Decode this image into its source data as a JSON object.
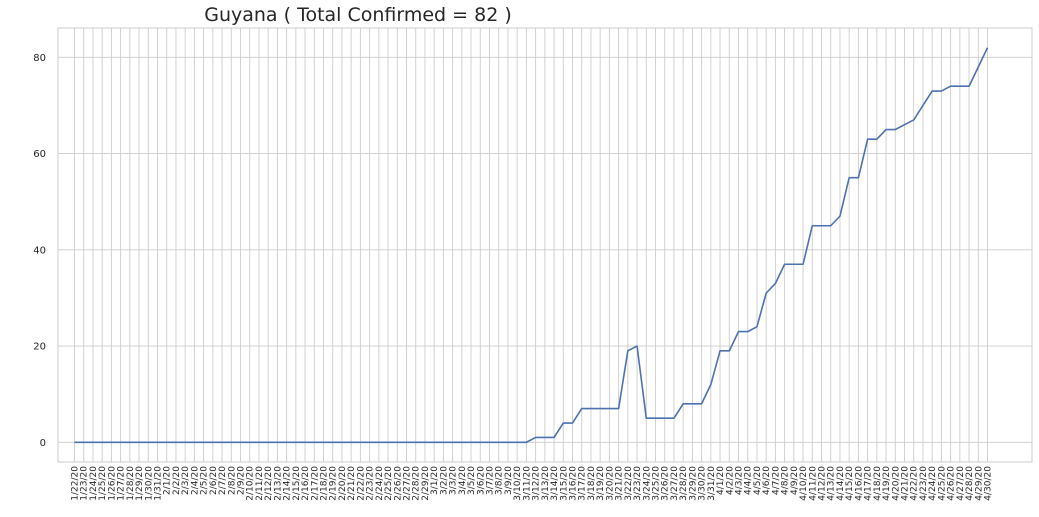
{
  "chart_data": {
    "type": "line",
    "title": "Guyana ( Total Confirmed = 82 )",
    "xlabel": "",
    "ylabel": "",
    "ylim": [
      -4.1,
      86.1
    ],
    "yticks": [
      0,
      20,
      40,
      60,
      80
    ],
    "grid": true,
    "legend": "none",
    "colors": {
      "line": "#4c72b0",
      "grid": "#cccccc",
      "frame": "#cccccc",
      "background": "#ffffff"
    },
    "x": [
      "1/22/20",
      "1/23/20",
      "1/24/20",
      "1/25/20",
      "1/26/20",
      "1/27/20",
      "1/28/20",
      "1/29/20",
      "1/30/20",
      "1/31/20",
      "2/1/20",
      "2/2/20",
      "2/3/20",
      "2/4/20",
      "2/5/20",
      "2/6/20",
      "2/7/20",
      "2/8/20",
      "2/9/20",
      "2/10/20",
      "2/11/20",
      "2/12/20",
      "2/13/20",
      "2/14/20",
      "2/15/20",
      "2/16/20",
      "2/17/20",
      "2/18/20",
      "2/19/20",
      "2/20/20",
      "2/21/20",
      "2/22/20",
      "2/23/20",
      "2/24/20",
      "2/25/20",
      "2/26/20",
      "2/27/20",
      "2/28/20",
      "2/29/20",
      "3/1/20",
      "3/2/20",
      "3/3/20",
      "3/4/20",
      "3/5/20",
      "3/6/20",
      "3/7/20",
      "3/8/20",
      "3/9/20",
      "3/10/20",
      "3/11/20",
      "3/12/20",
      "3/13/20",
      "3/14/20",
      "3/15/20",
      "3/16/20",
      "3/17/20",
      "3/18/20",
      "3/19/20",
      "3/20/20",
      "3/21/20",
      "3/22/20",
      "3/23/20",
      "3/24/20",
      "3/25/20",
      "3/26/20",
      "3/27/20",
      "3/28/20",
      "3/29/20",
      "3/30/20",
      "3/31/20",
      "4/1/20",
      "4/2/20",
      "4/3/20",
      "4/4/20",
      "4/5/20",
      "4/6/20",
      "4/7/20",
      "4/8/20",
      "4/9/20",
      "4/10/20",
      "4/11/20",
      "4/12/20",
      "4/13/20",
      "4/14/20",
      "4/15/20",
      "4/16/20",
      "4/17/20",
      "4/18/20",
      "4/19/20",
      "4/20/20",
      "4/21/20",
      "4/22/20",
      "4/23/20",
      "4/24/20",
      "4/25/20",
      "4/26/20",
      "4/27/20",
      "4/28/20",
      "4/29/20",
      "4/30/20"
    ],
    "series": [
      {
        "values": [
          0,
          0,
          0,
          0,
          0,
          0,
          0,
          0,
          0,
          0,
          0,
          0,
          0,
          0,
          0,
          0,
          0,
          0,
          0,
          0,
          0,
          0,
          0,
          0,
          0,
          0,
          0,
          0,
          0,
          0,
          0,
          0,
          0,
          0,
          0,
          0,
          0,
          0,
          0,
          0,
          0,
          0,
          0,
          0,
          0,
          0,
          0,
          0,
          0,
          0,
          1,
          1,
          1,
          4,
          4,
          7,
          7,
          7,
          7,
          7,
          19,
          20,
          5,
          5,
          5,
          5,
          8,
          8,
          8,
          12,
          19,
          19,
          23,
          23,
          24,
          31,
          33,
          37,
          37,
          37,
          45,
          45,
          45,
          47,
          55,
          55,
          63,
          63,
          65,
          65,
          66,
          67,
          70,
          73,
          73,
          74,
          74,
          74,
          78,
          82
        ]
      }
    ]
  }
}
